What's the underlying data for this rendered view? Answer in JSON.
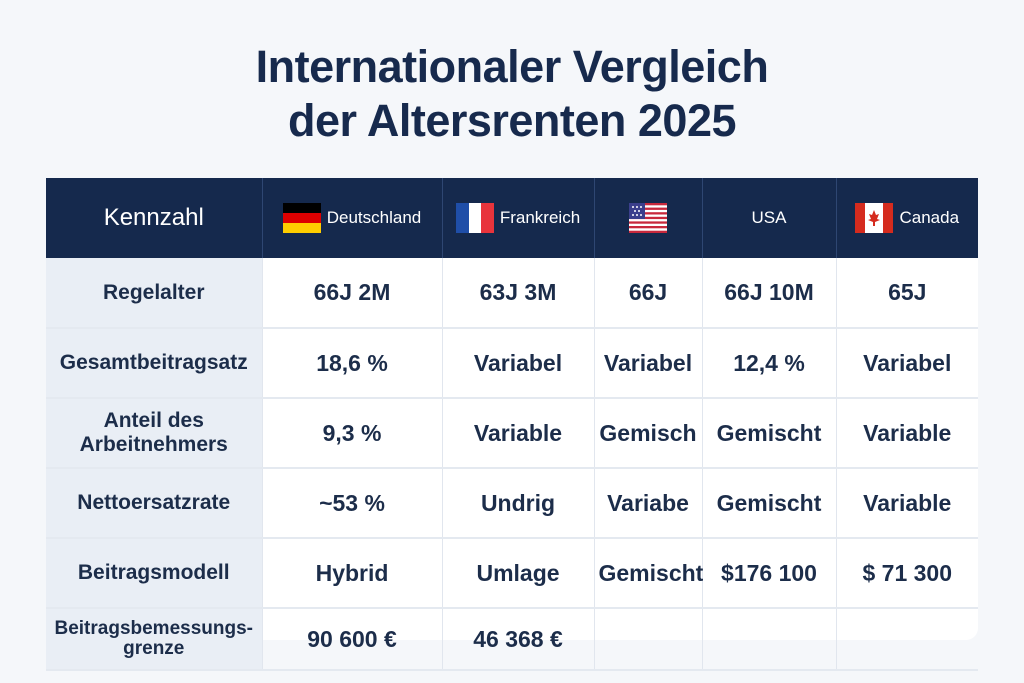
{
  "title": {
    "line1": "Internationaler Vergleich",
    "line2": "der Altersrenten 2025"
  },
  "table": {
    "header": {
      "label": "Kennzahl",
      "columns": [
        {
          "name": "Deutschland",
          "flag": "germany-flag-icon"
        },
        {
          "name": "Frankreich",
          "flag": "france-flag-icon"
        },
        {
          "name": "",
          "flag": "usa-flag-icon"
        },
        {
          "name": "USA",
          "flag": ""
        },
        {
          "name": "Canada",
          "flag": "canada-flag-icon"
        }
      ]
    },
    "rows": [
      {
        "label": "Regelalter",
        "cells": [
          "66J 2M",
          "63J 3M",
          "66J",
          "66J 10M",
          "65J"
        ]
      },
      {
        "label": "Gesamtbeitragsatz",
        "cells": [
          "18,6 %",
          "Variabel",
          "Variabel",
          "12,4 %",
          "Variabel"
        ]
      },
      {
        "label": "Anteil des Arbeitnehmers",
        "cells": [
          "9,3 %",
          "Variable",
          "Gemisch",
          "Gemischt",
          "Variable"
        ]
      },
      {
        "label": "Nettoersatzrate",
        "cells": [
          "~53 %",
          "Undrig",
          "Variabe",
          "Gemischt",
          "Variable"
        ]
      },
      {
        "label": "Beitragsmodell",
        "cells": [
          "Hybrid",
          "Umlage",
          "Gemischt",
          "$176 100",
          "$ 71 300"
        ]
      },
      {
        "label": "Beitragsbemessungs-grenze",
        "cells": [
          "90 600 €",
          "46 368 €",
          "",
          "",
          ""
        ]
      }
    ]
  },
  "colors": {
    "header_bg": "#15294d",
    "label_bg": "#e9eef5",
    "title": "#172a4d"
  }
}
